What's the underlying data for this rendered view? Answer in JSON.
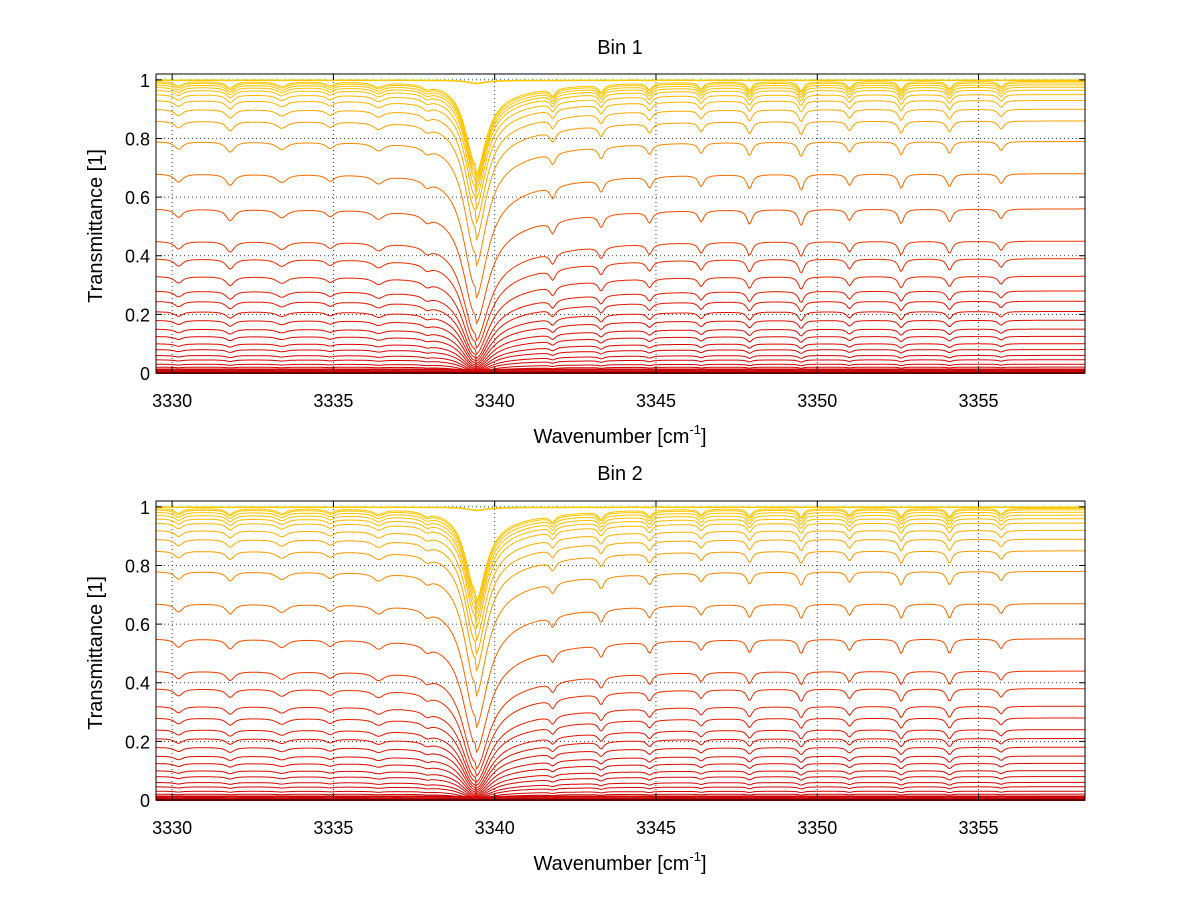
{
  "chart_data": [
    {
      "type": "line",
      "title": "Bin 1",
      "xlabel_main": "Wavenumber [cm",
      "xlabel_sup": "-1",
      "xlabel_close": "]",
      "ylabel": "Transmittance [1]",
      "xlim": [
        3329.5,
        3358.3
      ],
      "ylim": [
        0,
        1.02
      ],
      "xticks": [
        3330,
        3335,
        3340,
        3345,
        3350,
        3355
      ],
      "yticks": [
        0,
        0.2,
        0.4,
        0.6,
        0.8,
        1
      ],
      "ytick_labels": [
        "0",
        "0.2",
        "0.4",
        "0.6",
        "0.8",
        "1"
      ],
      "grid": "dotted",
      "colormap": "autumn (red to yellow)",
      "series_baseline_levels": [
        0.0,
        0.005,
        0.012,
        0.02,
        0.03,
        0.045,
        0.06,
        0.08,
        0.1,
        0.125,
        0.15,
        0.18,
        0.21,
        0.245,
        0.28,
        0.33,
        0.39,
        0.45,
        0.56,
        0.68,
        0.79,
        0.86,
        0.9,
        0.93,
        0.95,
        0.965,
        0.975,
        0.983,
        0.99,
        0.995,
        0.998,
        1.0
      ],
      "absorption_lines": [
        {
          "center": 3339.4,
          "strength": 1.0,
          "width": 0.35
        },
        {
          "center": 3330.2,
          "strength": 0.05,
          "width": 0.15
        },
        {
          "center": 3331.8,
          "strength": 0.07,
          "width": 0.15
        },
        {
          "center": 3333.4,
          "strength": 0.05,
          "width": 0.2
        },
        {
          "center": 3334.9,
          "strength": 0.04,
          "width": 0.15
        },
        {
          "center": 3336.4,
          "strength": 0.05,
          "width": 0.2
        },
        {
          "center": 3337.9,
          "strength": 0.04,
          "width": 0.15
        },
        {
          "center": 3341.8,
          "strength": 0.08,
          "width": 0.1
        },
        {
          "center": 3343.3,
          "strength": 0.08,
          "width": 0.1
        },
        {
          "center": 3344.8,
          "strength": 0.07,
          "width": 0.1
        },
        {
          "center": 3346.4,
          "strength": 0.07,
          "width": 0.1
        },
        {
          "center": 3347.9,
          "strength": 0.09,
          "width": 0.1
        },
        {
          "center": 3349.5,
          "strength": 0.1,
          "width": 0.1
        },
        {
          "center": 3351.0,
          "strength": 0.07,
          "width": 0.1
        },
        {
          "center": 3352.6,
          "strength": 0.09,
          "width": 0.1
        },
        {
          "center": 3354.1,
          "strength": 0.08,
          "width": 0.1
        },
        {
          "center": 3355.7,
          "strength": 0.06,
          "width": 0.1
        }
      ]
    },
    {
      "type": "line",
      "title": "Bin 2",
      "xlabel_main": "Wavenumber [cm",
      "xlabel_sup": "-1",
      "xlabel_close": "]",
      "ylabel": "Transmittance [1]",
      "xlim": [
        3329.5,
        3358.3
      ],
      "ylim": [
        0,
        1.02
      ],
      "xticks": [
        3330,
        3335,
        3340,
        3345,
        3350,
        3355
      ],
      "yticks": [
        0,
        0.2,
        0.4,
        0.6,
        0.8,
        1
      ],
      "ytick_labels": [
        "0",
        "0.2",
        "0.4",
        "0.6",
        "0.8",
        "1"
      ],
      "grid": "dotted",
      "colormap": "autumn (red to yellow)",
      "series_baseline_levels": [
        0.0,
        0.005,
        0.012,
        0.02,
        0.03,
        0.045,
        0.06,
        0.08,
        0.1,
        0.125,
        0.15,
        0.18,
        0.21,
        0.24,
        0.28,
        0.32,
        0.38,
        0.44,
        0.55,
        0.67,
        0.78,
        0.85,
        0.89,
        0.92,
        0.945,
        0.96,
        0.972,
        0.982,
        0.99,
        0.995,
        0.998,
        1.0
      ],
      "absorption_lines": [
        {
          "center": 3339.4,
          "strength": 1.0,
          "width": 0.35
        },
        {
          "center": 3330.2,
          "strength": 0.05,
          "width": 0.15
        },
        {
          "center": 3331.8,
          "strength": 0.06,
          "width": 0.15
        },
        {
          "center": 3333.4,
          "strength": 0.05,
          "width": 0.2
        },
        {
          "center": 3334.9,
          "strength": 0.04,
          "width": 0.15
        },
        {
          "center": 3336.4,
          "strength": 0.05,
          "width": 0.2
        },
        {
          "center": 3337.9,
          "strength": 0.04,
          "width": 0.15
        },
        {
          "center": 3341.8,
          "strength": 0.07,
          "width": 0.1
        },
        {
          "center": 3343.3,
          "strength": 0.08,
          "width": 0.1
        },
        {
          "center": 3344.8,
          "strength": 0.07,
          "width": 0.1
        },
        {
          "center": 3346.4,
          "strength": 0.06,
          "width": 0.1
        },
        {
          "center": 3347.9,
          "strength": 0.08,
          "width": 0.1
        },
        {
          "center": 3349.5,
          "strength": 0.09,
          "width": 0.1
        },
        {
          "center": 3351.0,
          "strength": 0.07,
          "width": 0.1
        },
        {
          "center": 3352.6,
          "strength": 0.09,
          "width": 0.1
        },
        {
          "center": 3354.1,
          "strength": 0.09,
          "width": 0.1
        },
        {
          "center": 3355.7,
          "strength": 0.06,
          "width": 0.1
        }
      ]
    }
  ],
  "colors": {
    "background": "#ffffff",
    "axis": "#000000",
    "grid": "#000000",
    "colormap_start": "#cc0000",
    "colormap_end": "#ffd700",
    "top_edge_accent": "#7fffd4"
  }
}
